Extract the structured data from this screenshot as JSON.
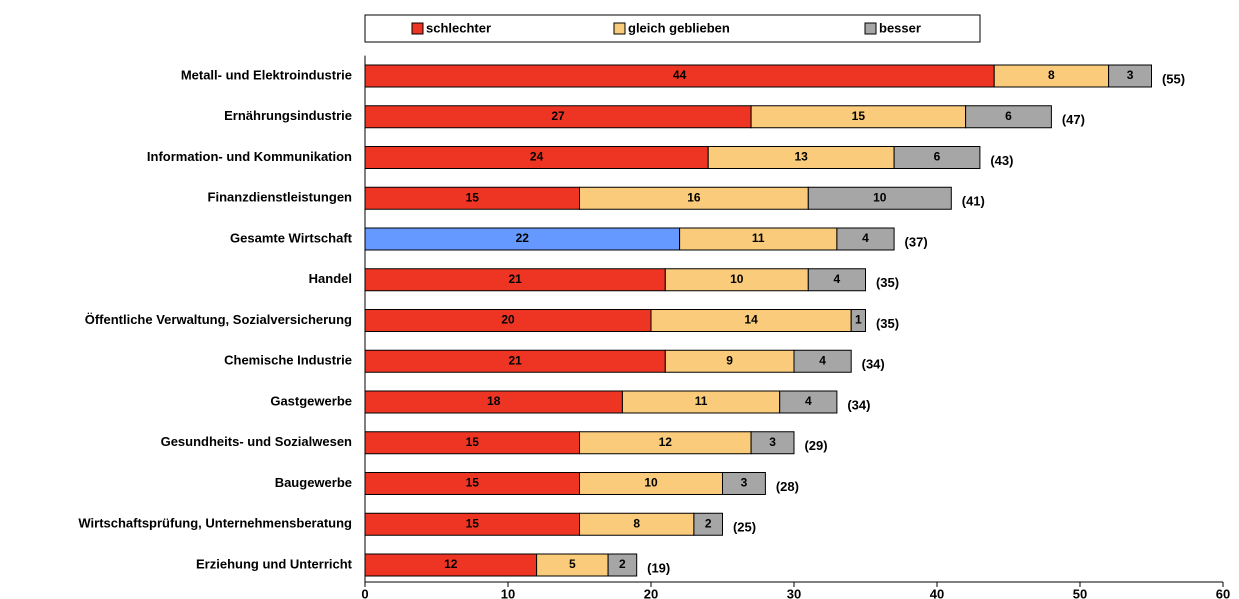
{
  "chart_data": {
    "type": "stacked_barh",
    "categories": [
      "Metall- und Elektroindustrie",
      "Ernährungsindustrie",
      "Information- und Kommunikation",
      "Finanzdienstleistungen",
      "Gesamte Wirtschaft",
      "Handel",
      "Öffentliche Verwaltung, Sozialversicherung",
      "Chemische Industrie",
      "Gastgewerbe",
      "Gesundheits- und Sozialwesen",
      "Baugewerbe",
      "Wirtschaftsprüfung, Unternehmensberatung",
      "Erziehung und Unterricht"
    ],
    "series": [
      {
        "name": "schlechter",
        "color": "#ee3524",
        "colors": [
          "#ee3524",
          "#ee3524",
          "#ee3524",
          "#ee3524",
          "#6699ff",
          "#ee3524",
          "#ee3524",
          "#ee3524",
          "#ee3524",
          "#ee3524",
          "#ee3524",
          "#ee3524",
          "#ee3524"
        ],
        "values": [
          44,
          27,
          24,
          15,
          22,
          21,
          20,
          21,
          18,
          15,
          15,
          15,
          12
        ]
      },
      {
        "name": "gleich geblieben",
        "color": "#f9cb7a",
        "values": [
          8,
          15,
          13,
          16,
          11,
          10,
          14,
          9,
          11,
          12,
          10,
          8,
          5
        ]
      },
      {
        "name": "besser",
        "color": "#a6a6a6",
        "values": [
          3,
          6,
          6,
          10,
          4,
          4,
          1,
          4,
          4,
          3,
          3,
          2,
          2
        ]
      }
    ],
    "totals": {
      "values": [
        55,
        47,
        43,
        41,
        37,
        35,
        35,
        34,
        34,
        29,
        28,
        25,
        19
      ],
      "value_labels": [
        "(55)",
        "(47)",
        "(43)",
        "(41)",
        "(37)",
        "(35)",
        "(35)",
        "(34)",
        "(34)",
        "(29)",
        "(28)",
        "(25)",
        "(19)"
      ]
    },
    "xlim": [
      0,
      60
    ],
    "xticks": [
      0,
      10,
      20,
      30,
      40,
      50,
      60
    ]
  }
}
